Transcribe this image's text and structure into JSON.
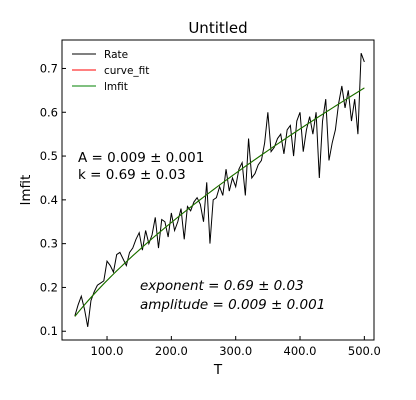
{
  "chart_data": {
    "type": "line",
    "title": "Untitled",
    "xlabel": "T",
    "ylabel": "lmfit",
    "xlim": [
      30,
      515
    ],
    "ylim": [
      0.08,
      0.765
    ],
    "xticks": [
      100,
      200,
      300,
      400,
      500
    ],
    "xtick_labels": [
      "100.0",
      "200.0",
      "300.0",
      "400.0",
      "500.0"
    ],
    "yticks": [
      0.1,
      0.2,
      0.3,
      0.4,
      0.5,
      0.6,
      0.7
    ],
    "ytick_labels": [
      "0.1",
      "0.2",
      "0.3",
      "0.4",
      "0.5",
      "0.6",
      "0.7"
    ],
    "grid": false,
    "legend_position": "top-left",
    "series": [
      {
        "name": "Rate",
        "color": "#000000",
        "x": [
          50,
          55,
          60,
          65,
          70,
          75,
          80,
          85,
          90,
          95,
          100,
          105,
          110,
          115,
          120,
          125,
          130,
          135,
          140,
          145,
          150,
          155,
          160,
          165,
          170,
          175,
          180,
          185,
          190,
          195,
          200,
          205,
          210,
          215,
          220,
          225,
          230,
          235,
          240,
          245,
          250,
          255,
          260,
          265,
          270,
          275,
          280,
          285,
          290,
          295,
          300,
          305,
          310,
          315,
          320,
          325,
          330,
          335,
          340,
          345,
          350,
          355,
          360,
          365,
          370,
          375,
          380,
          385,
          390,
          395,
          400,
          405,
          410,
          415,
          420,
          425,
          430,
          435,
          440,
          445,
          450,
          455,
          460,
          465,
          470,
          475,
          480,
          485,
          490,
          495,
          500
        ],
        "y": [
          0.135,
          0.16,
          0.18,
          0.15,
          0.11,
          0.17,
          0.19,
          0.205,
          0.21,
          0.215,
          0.26,
          0.25,
          0.235,
          0.275,
          0.28,
          0.265,
          0.25,
          0.28,
          0.29,
          0.31,
          0.325,
          0.285,
          0.33,
          0.3,
          0.32,
          0.36,
          0.29,
          0.355,
          0.35,
          0.315,
          0.37,
          0.33,
          0.35,
          0.38,
          0.31,
          0.385,
          0.375,
          0.395,
          0.405,
          0.39,
          0.35,
          0.44,
          0.3,
          0.4,
          0.405,
          0.43,
          0.41,
          0.47,
          0.42,
          0.45,
          0.43,
          0.47,
          0.485,
          0.41,
          0.54,
          0.45,
          0.46,
          0.48,
          0.49,
          0.53,
          0.6,
          0.51,
          0.52,
          0.54,
          0.55,
          0.505,
          0.56,
          0.57,
          0.5,
          0.58,
          0.6,
          0.51,
          0.56,
          0.59,
          0.55,
          0.6,
          0.45,
          0.58,
          0.63,
          0.49,
          0.53,
          0.56,
          0.62,
          0.66,
          0.61,
          0.65,
          0.58,
          0.63,
          0.55,
          0.735,
          0.715
        ]
      },
      {
        "name": "curve_fit",
        "color": "#ff0000",
        "fit": {
          "amplitude": 0.009,
          "exponent": 0.69
        }
      },
      {
        "name": "lmfit",
        "color": "#008000",
        "fit": {
          "amplitude": 0.009,
          "exponent": 0.69
        }
      }
    ],
    "annotations": {
      "box1_line1": "A = 0.009 ± 0.001",
      "box1_line2": "k = 0.69 ± 0.03",
      "box2_line1": "exponent = 0.69 ± 0.03",
      "box2_line2": "amplitude = 0.009 ± 0.001"
    }
  }
}
